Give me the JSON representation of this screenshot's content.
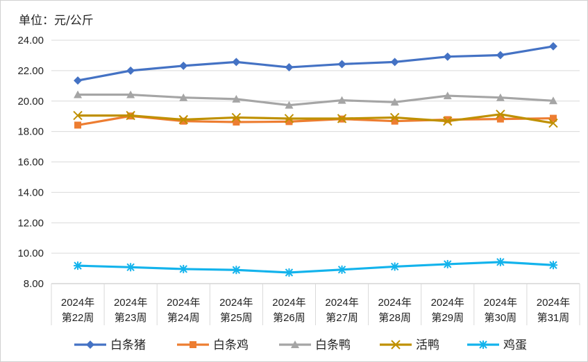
{
  "unit_label": "单位：元/公斤",
  "chart_data": {
    "type": "line",
    "title": "",
    "xlabel": "",
    "ylabel": "单位：元/公斤",
    "ylim": [
      8,
      24
    ],
    "yticks": [
      "8.00",
      "10.00",
      "12.00",
      "14.00",
      "16.00",
      "18.00",
      "20.00",
      "22.00",
      "24.00"
    ],
    "grid": true,
    "legend_position": "bottom",
    "categories": [
      [
        "2024年",
        "第22周"
      ],
      [
        "2024年",
        "第23周"
      ],
      [
        "2024年",
        "第24周"
      ],
      [
        "2024年",
        "第25周"
      ],
      [
        "2024年",
        "第26周"
      ],
      [
        "2024年",
        "第27周"
      ],
      [
        "2024年",
        "第28周"
      ],
      [
        "2024年",
        "第29周"
      ],
      [
        "2024年",
        "第30周"
      ],
      [
        "2024年",
        "第31周"
      ]
    ],
    "series": [
      {
        "name": "白条猪",
        "color": "#4472C4",
        "marker": "diamond",
        "values": [
          21.35,
          22.0,
          22.32,
          22.57,
          22.22,
          22.43,
          22.57,
          22.92,
          23.02,
          23.6
        ]
      },
      {
        "name": "白条鸡",
        "color": "#ED7D31",
        "marker": "square",
        "values": [
          18.42,
          19.02,
          18.68,
          18.62,
          18.65,
          18.82,
          18.68,
          18.78,
          18.82,
          18.87
        ]
      },
      {
        "name": "白条鸭",
        "color": "#A5A5A5",
        "marker": "triangle",
        "values": [
          20.42,
          20.42,
          20.23,
          20.13,
          19.73,
          20.05,
          19.93,
          20.35,
          20.23,
          20.02
        ]
      },
      {
        "name": "活鸭",
        "color": "#BF9000",
        "marker": "x",
        "values": [
          19.05,
          19.05,
          18.78,
          18.92,
          18.85,
          18.85,
          18.92,
          18.68,
          19.13,
          18.55
        ]
      },
      {
        "name": "鸡蛋",
        "color": "#13B3EC",
        "marker": "star",
        "values": [
          9.18,
          9.08,
          8.96,
          8.9,
          8.73,
          8.92,
          9.12,
          9.28,
          9.42,
          9.22
        ]
      }
    ]
  }
}
